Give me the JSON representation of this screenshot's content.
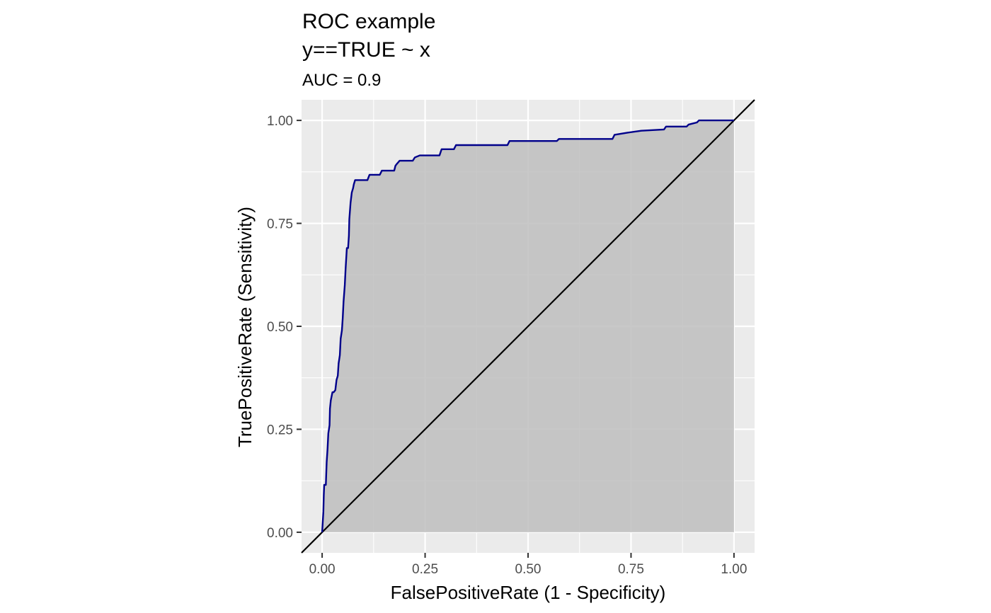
{
  "chart_data": {
    "type": "area",
    "title": "ROC example",
    "title_line2": "y==TRUE ~ x",
    "subtitle": "AUC = 0.9",
    "xlabel": "FalsePositiveRate (1 - Specificity)",
    "ylabel": "TruePositiveRate (Sensitivity)",
    "xlim": [
      -0.05,
      1.05
    ],
    "ylim": [
      -0.05,
      1.05
    ],
    "x_ticks": [
      0,
      0.25,
      0.5,
      0.75,
      1
    ],
    "x_tick_labels": [
      "0.00",
      "0.25",
      "0.50",
      "0.75",
      "1.00"
    ],
    "y_ticks": [
      0,
      0.25,
      0.5,
      0.75,
      1
    ],
    "y_tick_labels": [
      "0.00",
      "0.25",
      "0.50",
      "0.75",
      "1.00"
    ],
    "grid": true,
    "colors": {
      "panel_background": "#ebebeb",
      "grid": "#ffffff",
      "fill": "#bebebe",
      "roc_line": "#00008b",
      "diagonal": "#000000"
    },
    "series": [
      {
        "role": "roc-curve",
        "points": [
          [
            0.0,
            0.0
          ],
          [
            0.003,
            0.05
          ],
          [
            0.004,
            0.09
          ],
          [
            0.005,
            0.115
          ],
          [
            0.009,
            0.115
          ],
          [
            0.011,
            0.17
          ],
          [
            0.013,
            0.2
          ],
          [
            0.015,
            0.24
          ],
          [
            0.018,
            0.26
          ],
          [
            0.019,
            0.3
          ],
          [
            0.021,
            0.32
          ],
          [
            0.025,
            0.34
          ],
          [
            0.028,
            0.34
          ],
          [
            0.032,
            0.345
          ],
          [
            0.035,
            0.37
          ],
          [
            0.038,
            0.38
          ],
          [
            0.04,
            0.41
          ],
          [
            0.043,
            0.43
          ],
          [
            0.045,
            0.47
          ],
          [
            0.048,
            0.49
          ],
          [
            0.05,
            0.52
          ],
          [
            0.052,
            0.56
          ],
          [
            0.055,
            0.6
          ],
          [
            0.057,
            0.64
          ],
          [
            0.06,
            0.69
          ],
          [
            0.063,
            0.69
          ],
          [
            0.065,
            0.72
          ],
          [
            0.066,
            0.76
          ],
          [
            0.069,
            0.8
          ],
          [
            0.072,
            0.825
          ],
          [
            0.075,
            0.835
          ],
          [
            0.077,
            0.845
          ],
          [
            0.08,
            0.855
          ],
          [
            0.11,
            0.855
          ],
          [
            0.115,
            0.868
          ],
          [
            0.14,
            0.868
          ],
          [
            0.145,
            0.878
          ],
          [
            0.175,
            0.878
          ],
          [
            0.178,
            0.89
          ],
          [
            0.182,
            0.895
          ],
          [
            0.188,
            0.902
          ],
          [
            0.22,
            0.902
          ],
          [
            0.225,
            0.91
          ],
          [
            0.237,
            0.915
          ],
          [
            0.285,
            0.915
          ],
          [
            0.29,
            0.93
          ],
          [
            0.32,
            0.93
          ],
          [
            0.325,
            0.94
          ],
          [
            0.45,
            0.94
          ],
          [
            0.455,
            0.95
          ],
          [
            0.57,
            0.95
          ],
          [
            0.575,
            0.955
          ],
          [
            0.705,
            0.955
          ],
          [
            0.71,
            0.965
          ],
          [
            0.74,
            0.97
          ],
          [
            0.775,
            0.975
          ],
          [
            0.83,
            0.978
          ],
          [
            0.835,
            0.985
          ],
          [
            0.885,
            0.985
          ],
          [
            0.89,
            0.99
          ],
          [
            0.91,
            0.995
          ],
          [
            0.915,
            1.0
          ],
          [
            1.0,
            1.0
          ]
        ]
      },
      {
        "role": "diagonal-reference",
        "points": [
          [
            -0.05,
            -0.05
          ],
          [
            1.05,
            1.05
          ]
        ]
      }
    ]
  }
}
